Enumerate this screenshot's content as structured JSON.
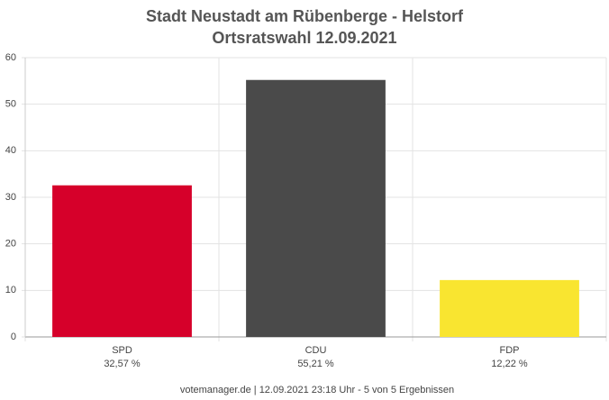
{
  "chart_data": {
    "type": "bar",
    "title": "Stadt Neustadt am Rübenberge - Helstorf",
    "subtitle": "Ortsratswahl 12.09.2021",
    "categories": [
      "SPD",
      "CDU",
      "FDP"
    ],
    "values": [
      32.57,
      55.21,
      12.22
    ],
    "value_labels": [
      "32,57 %",
      "55,21 %",
      "12,22 %"
    ],
    "colors": [
      "#d6002a",
      "#4a4a4a",
      "#f9e530"
    ],
    "ylim": [
      0,
      60
    ],
    "yticks": [
      0,
      10,
      20,
      30,
      40,
      50,
      60
    ],
    "grid": true,
    "footer": "votemanager.de | 12.09.2021 23:18 Uhr - 5 von 5 Ergebnissen"
  }
}
